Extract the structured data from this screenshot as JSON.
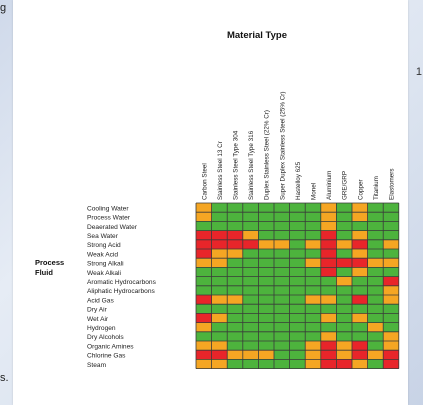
{
  "fragments": {
    "left_top": "g",
    "left_bottom": "s.",
    "right_mid": "1"
  },
  "colors": {
    "green": "#4db33d",
    "amber": "#f5a623",
    "red": "#e8252a",
    "grid": "#3a3a3a"
  },
  "chart_data": {
    "type": "heatmap",
    "title": "Material Type",
    "row_group_label": "Process Fluid",
    "columns": [
      "Carbon Steel",
      "Stainless Steel 13 Cr",
      "Stainless Steel Type 304",
      "Stainless Steel Type 316",
      "Duplex Stainless Steel (22% Cr)",
      "Super Duplex Stainless Steel (25% Cr)",
      "Hastelloy 625",
      "Monel",
      "Aluminium",
      "GRE/GRP",
      "Copper",
      "Titanium",
      "Elastomers"
    ],
    "rows": [
      "Cooling Water",
      "Process Water",
      "Deaerated Water",
      "Sea Water",
      "Strong Acid",
      "Weak Acid",
      "Strong Alkali",
      "Weak Alkali",
      "Aromatic Hydrocarbons",
      "Aliphatic Hydrocarbons",
      "Acid Gas",
      "Dry Air",
      "Wet Air",
      "Hydrogen",
      "Dry Alcohols",
      "Organic Amines",
      "Chlorine Gas",
      "Steam"
    ],
    "legend": {
      "G": "green",
      "A": "amber",
      "R": "red"
    },
    "values": [
      [
        "A",
        "G",
        "G",
        "G",
        "G",
        "G",
        "G",
        "G",
        "A",
        "G",
        "A",
        "G",
        "G"
      ],
      [
        "A",
        "G",
        "G",
        "G",
        "G",
        "G",
        "G",
        "G",
        "A",
        "G",
        "A",
        "G",
        "G"
      ],
      [
        "G",
        "G",
        "G",
        "G",
        "G",
        "G",
        "G",
        "G",
        "A",
        "G",
        "G",
        "G",
        "G"
      ],
      [
        "R",
        "R",
        "R",
        "A",
        "G",
        "G",
        "G",
        "G",
        "R",
        "G",
        "A",
        "G",
        "G"
      ],
      [
        "R",
        "R",
        "R",
        "R",
        "A",
        "A",
        "G",
        "A",
        "R",
        "A",
        "R",
        "G",
        "A"
      ],
      [
        "R",
        "A",
        "A",
        "G",
        "G",
        "G",
        "G",
        "G",
        "R",
        "G",
        "A",
        "G",
        "G"
      ],
      [
        "A",
        "A",
        "G",
        "G",
        "G",
        "G",
        "G",
        "A",
        "R",
        "R",
        "R",
        "A",
        "A"
      ],
      [
        "G",
        "G",
        "G",
        "G",
        "G",
        "G",
        "G",
        "G",
        "R",
        "G",
        "A",
        "G",
        "G"
      ],
      [
        "G",
        "G",
        "G",
        "G",
        "G",
        "G",
        "G",
        "G",
        "G",
        "A",
        "G",
        "G",
        "R"
      ],
      [
        "G",
        "G",
        "G",
        "G",
        "G",
        "G",
        "G",
        "G",
        "G",
        "G",
        "G",
        "G",
        "A"
      ],
      [
        "R",
        "A",
        "A",
        "G",
        "G",
        "G",
        "G",
        "A",
        "A",
        "G",
        "R",
        "G",
        "A"
      ],
      [
        "G",
        "G",
        "G",
        "G",
        "G",
        "G",
        "G",
        "G",
        "G",
        "G",
        "G",
        "G",
        "G"
      ],
      [
        "R",
        "A",
        "G",
        "G",
        "G",
        "G",
        "G",
        "G",
        "A",
        "G",
        "A",
        "G",
        "G"
      ],
      [
        "A",
        "G",
        "G",
        "G",
        "G",
        "G",
        "G",
        "G",
        "G",
        "G",
        "G",
        "A",
        "G"
      ],
      [
        "G",
        "G",
        "G",
        "G",
        "G",
        "G",
        "G",
        "G",
        "A",
        "G",
        "G",
        "G",
        "A"
      ],
      [
        "A",
        "A",
        "G",
        "G",
        "G",
        "G",
        "G",
        "A",
        "R",
        "A",
        "R",
        "G",
        "A"
      ],
      [
        "R",
        "R",
        "A",
        "A",
        "A",
        "G",
        "G",
        "A",
        "R",
        "A",
        "R",
        "A",
        "R"
      ],
      [
        "A",
        "A",
        "G",
        "G",
        "G",
        "G",
        "G",
        "A",
        "R",
        "R",
        "A",
        "G",
        "R"
      ]
    ]
  }
}
